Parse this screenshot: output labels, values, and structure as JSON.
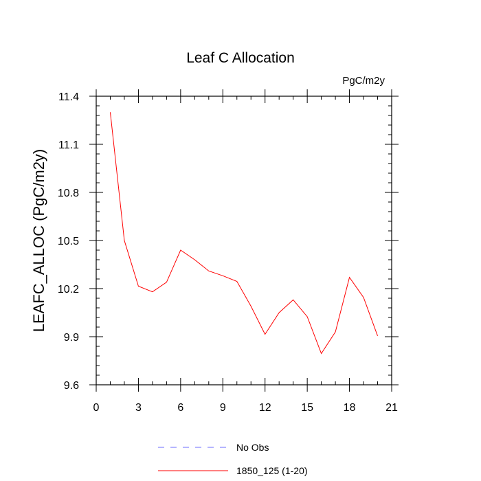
{
  "chart_data": {
    "type": "line",
    "title": "Leaf C Allocation",
    "units_label": "PgC/m2y",
    "xlabel": "",
    "ylabel": "LEAFC_ALLOC  (PgC/m2y)",
    "xlim": [
      0,
      21
    ],
    "ylim": [
      9.6,
      11.4
    ],
    "x_ticks": [
      0,
      3,
      6,
      9,
      12,
      15,
      18,
      21
    ],
    "x_tick_labels": [
      "0",
      "3",
      "6",
      "9",
      "12",
      "15",
      "18",
      "21"
    ],
    "y_ticks": [
      9.6,
      9.9,
      10.2,
      10.5,
      10.8,
      11.1,
      11.4
    ],
    "y_tick_labels": [
      "9.6",
      "9.9",
      "10.2",
      "10.5",
      "10.8",
      "11.1",
      "11.4"
    ],
    "x_minor_step": 1,
    "y_minor_step": 0.06,
    "series": [
      {
        "name": "1850_125 (1-20)",
        "color": "#ff0000",
        "dash": "solid",
        "x": [
          1,
          2,
          3,
          4,
          5,
          6,
          7,
          8,
          9,
          10,
          11,
          12,
          13,
          14,
          15,
          16,
          17,
          18,
          19,
          20
        ],
        "values": [
          11.3,
          10.5,
          10.215,
          10.18,
          10.24,
          10.44,
          10.38,
          10.31,
          10.28,
          10.245,
          10.09,
          9.915,
          10.05,
          10.13,
          10.025,
          9.795,
          9.93,
          10.27,
          10.145,
          9.905
        ]
      }
    ],
    "legend": [
      {
        "label": "No Obs",
        "color": "#6b6bff",
        "dash": "dashed"
      },
      {
        "label": "1850_125 (1-20)",
        "color": "#ff0000",
        "dash": "solid"
      }
    ],
    "legend_position": "bottom-center"
  }
}
